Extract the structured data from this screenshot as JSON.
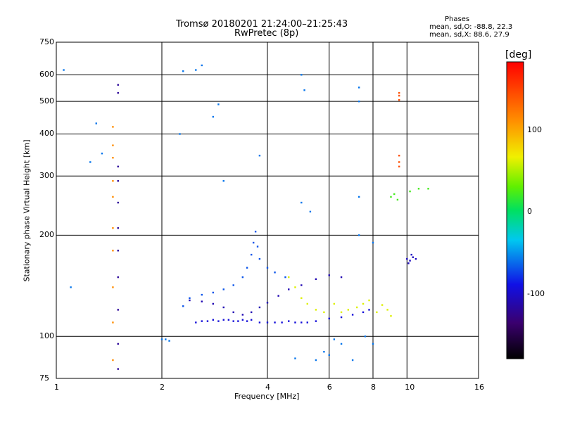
{
  "header": {
    "title_line1": "Tromsø 20180201 21:24:00–21:25:43",
    "title_line2": "RwPretec (8p)",
    "stats_title": "Phases",
    "stats_o": "mean, sd,O: -88.8, 22.3",
    "stats_x": "mean, sd,X:  88.6, 27.9"
  },
  "chart_data": {
    "type": "scatter",
    "xlabel": "Frequency [MHz]",
    "ylabel": "Stationary phase Virtual Height [km]",
    "x_scale": "log",
    "y_scale": "log",
    "xlim": [
      1,
      16
    ],
    "ylim": [
      75,
      750
    ],
    "x_ticks": [
      1,
      2,
      4,
      6,
      8,
      10,
      16
    ],
    "x_tick_labels": [
      "1",
      "2",
      "4",
      "6",
      "8",
      "10",
      "16"
    ],
    "y_ticks": [
      75,
      100,
      200,
      300,
      400,
      500,
      600,
      750
    ],
    "y_tick_labels": [
      "75",
      "100",
      "200",
      "300",
      "400",
      "500",
      "600",
      "750"
    ],
    "grid": true,
    "colorbar": {
      "label": "[deg]",
      "range": [
        -180,
        180
      ],
      "ticks": [
        100,
        0,
        -100
      ],
      "tick_labels": [
        "100",
        "0",
        "-100"
      ]
    },
    "series": [
      {
        "trace": "lower-trace",
        "color_phase": -95,
        "points": [
          [
            2.5,
            110
          ],
          [
            2.6,
            111
          ],
          [
            2.7,
            111
          ],
          [
            2.8,
            112
          ],
          [
            2.9,
            111
          ],
          [
            3.0,
            112
          ],
          [
            3.1,
            112
          ],
          [
            3.2,
            111
          ],
          [
            3.3,
            111
          ],
          [
            3.4,
            112
          ],
          [
            3.5,
            111
          ],
          [
            3.6,
            112
          ],
          [
            3.8,
            110
          ],
          [
            4.0,
            110
          ],
          [
            4.2,
            110
          ],
          [
            4.4,
            110
          ],
          [
            4.6,
            111
          ],
          [
            4.8,
            110
          ],
          [
            5.0,
            110
          ],
          [
            5.2,
            110
          ],
          [
            5.5,
            111
          ],
          [
            6.0,
            113
          ],
          [
            6.5,
            114
          ],
          [
            7.0,
            116
          ],
          [
            7.5,
            118
          ],
          [
            7.8,
            120
          ]
        ]
      },
      {
        "trace": "middle-trace",
        "color_phase": -110,
        "points": [
          [
            2.4,
            128
          ],
          [
            2.6,
            127
          ],
          [
            2.8,
            125
          ],
          [
            3.0,
            122
          ],
          [
            3.2,
            118
          ],
          [
            3.4,
            116
          ],
          [
            3.6,
            118
          ],
          [
            3.8,
            122
          ],
          [
            4.0,
            126
          ],
          [
            4.3,
            132
          ],
          [
            4.6,
            138
          ],
          [
            5.0,
            142
          ],
          [
            5.5,
            148
          ],
          [
            6.0,
            152
          ],
          [
            6.5,
            150
          ]
        ]
      },
      {
        "trace": "upper-trace",
        "color_phase": -70,
        "points": [
          [
            2.3,
            123
          ],
          [
            2.4,
            130
          ],
          [
            2.6,
            133
          ],
          [
            2.8,
            135
          ],
          [
            3.0,
            138
          ],
          [
            3.2,
            142
          ],
          [
            3.4,
            150
          ],
          [
            3.5,
            160
          ],
          [
            3.6,
            175
          ],
          [
            3.65,
            190
          ],
          [
            3.7,
            205
          ],
          [
            3.75,
            185
          ],
          [
            3.8,
            170
          ],
          [
            4.0,
            160
          ],
          [
            4.2,
            155
          ],
          [
            4.5,
            150
          ]
        ]
      },
      {
        "trace": "mid-band-scatter",
        "color_phase": 60,
        "points": [
          [
            4.6,
            150
          ],
          [
            4.8,
            140
          ],
          [
            5.0,
            130
          ],
          [
            5.2,
            125
          ],
          [
            5.5,
            120
          ],
          [
            5.8,
            118
          ],
          [
            6.2,
            125
          ],
          [
            6.5,
            118
          ],
          [
            6.8,
            120
          ],
          [
            7.2,
            122
          ],
          [
            7.5,
            125
          ],
          [
            7.8,
            128
          ],
          [
            8.2,
            118
          ],
          [
            8.5,
            124
          ],
          [
            8.8,
            120
          ],
          [
            9.0,
            115
          ]
        ]
      },
      {
        "trace": "column-1.5MHz",
        "color_phase": -120,
        "points": [
          [
            1.5,
            80
          ],
          [
            1.5,
            95
          ],
          [
            1.5,
            120
          ],
          [
            1.5,
            150
          ],
          [
            1.5,
            180
          ],
          [
            1.5,
            210
          ],
          [
            1.5,
            250
          ],
          [
            1.5,
            290
          ],
          [
            1.5,
            320
          ],
          [
            1.5,
            530
          ],
          [
            1.5,
            560
          ]
        ]
      },
      {
        "trace": "column-1.45MHz",
        "color_phase": 110,
        "points": [
          [
            1.45,
            85
          ],
          [
            1.45,
            110
          ],
          [
            1.45,
            140
          ],
          [
            1.45,
            180
          ],
          [
            1.45,
            210
          ],
          [
            1.45,
            260
          ],
          [
            1.45,
            290
          ],
          [
            1.45,
            340
          ],
          [
            1.45,
            370
          ],
          [
            1.45,
            420
          ]
        ]
      },
      {
        "trace": "column-9.5MHz",
        "color_phase": 140,
        "points": [
          [
            9.5,
            320
          ],
          [
            9.5,
            330
          ],
          [
            9.5,
            345
          ],
          [
            9.5,
            505
          ],
          [
            9.5,
            520
          ],
          [
            9.5,
            530
          ]
        ]
      },
      {
        "trace": "cluster-10.2MHz",
        "color_phase": -105,
        "points": [
          [
            10.0,
            170
          ],
          [
            10.2,
            168
          ],
          [
            10.4,
            172
          ],
          [
            10.6,
            170
          ],
          [
            10.3,
            175
          ],
          [
            10.1,
            165
          ]
        ]
      },
      {
        "trace": "high-frequency-cluster",
        "color_phase": 20,
        "points": [
          [
            9.0,
            260
          ],
          [
            9.2,
            265
          ],
          [
            9.4,
            255
          ],
          [
            10.2,
            270
          ],
          [
            10.8,
            275
          ],
          [
            11.5,
            275
          ]
        ]
      },
      {
        "trace": "scattered-points",
        "color_phase": -60,
        "points": [
          [
            1.05,
            620
          ],
          [
            1.1,
            140
          ],
          [
            1.25,
            330
          ],
          [
            1.3,
            430
          ],
          [
            1.35,
            350
          ],
          [
            2.05,
            98
          ],
          [
            2.0,
            98
          ],
          [
            2.1,
            97
          ],
          [
            2.25,
            400
          ],
          [
            2.3,
            615
          ],
          [
            2.5,
            620
          ],
          [
            2.6,
            640
          ],
          [
            2.8,
            450
          ],
          [
            2.9,
            490
          ],
          [
            3.0,
            290
          ],
          [
            3.8,
            345
          ],
          [
            5.0,
            600
          ],
          [
            5.1,
            540
          ],
          [
            5.0,
            250
          ],
          [
            5.3,
            235
          ],
          [
            6.2,
            98
          ],
          [
            6.5,
            95
          ],
          [
            7.0,
            85
          ],
          [
            7.3,
            550
          ],
          [
            7.3,
            500
          ],
          [
            7.3,
            260
          ],
          [
            7.3,
            200
          ],
          [
            8.0,
            190
          ],
          [
            5.8,
            90
          ],
          [
            6.0,
            88
          ],
          [
            5.5,
            85
          ],
          [
            4.8,
            86
          ],
          [
            7.6,
            100
          ],
          [
            8.0,
            95
          ]
        ]
      }
    ]
  }
}
